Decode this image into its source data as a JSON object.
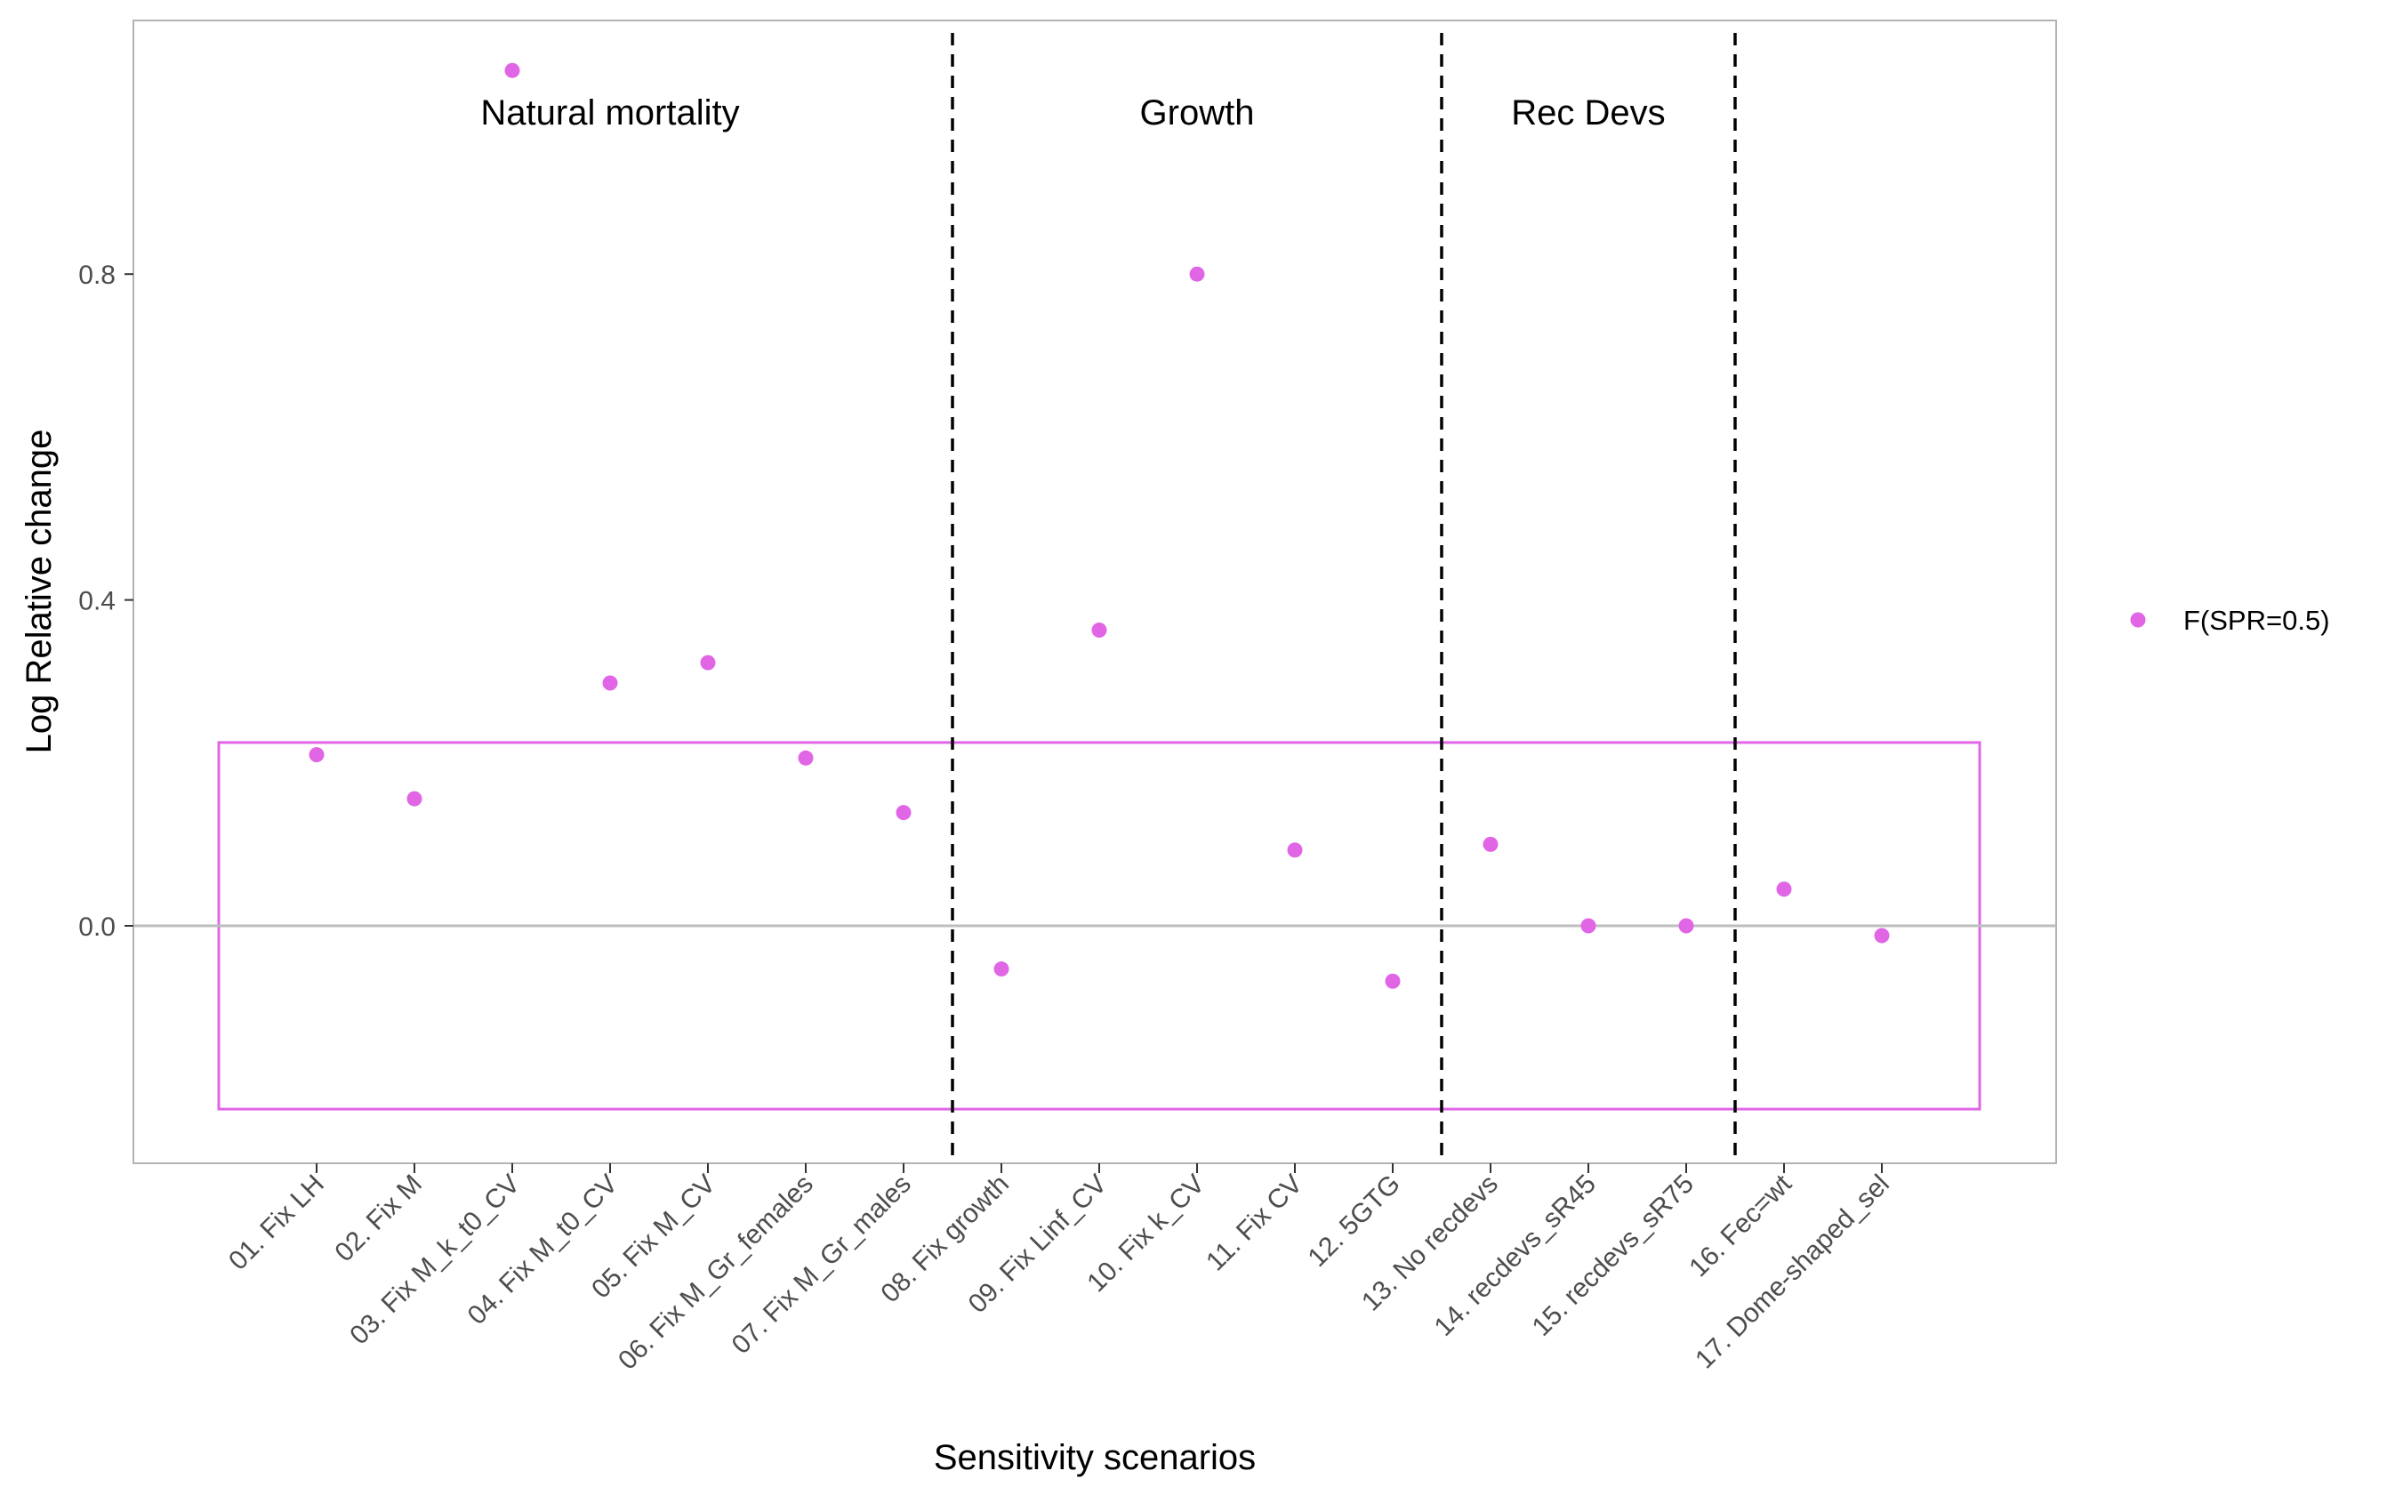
{
  "chart_data": {
    "type": "scatter",
    "xlabel": "Sensitivity scenarios",
    "ylabel": "Log Relative change",
    "ylim": [
      -0.29,
      1.11
    ],
    "yticks": [
      "0.0",
      "0.4",
      "0.8"
    ],
    "grid": false,
    "legend_position": "right",
    "categories": [
      "01. Fix LH",
      "02. Fix M",
      "03. Fix M_k_t0_CV",
      "04. Fix M_t0_CV",
      "05. Fix M_CV",
      "06. Fix M_Gr_females",
      "07. Fix M_Gr_males",
      "08. Fix growth",
      "09. Fix Linf_CV",
      "10. Fix k_CV",
      "11. Fix CV",
      "12. 5GTG",
      "13. No recdevs",
      "14. recdevs_sR45",
      "15. recdevs_sR75",
      "16. Fec=wt",
      "17. Dome-shaped_sel"
    ],
    "series": [
      {
        "name": "F(SPR=0.5)",
        "color": "#e066e6",
        "values": [
          0.21,
          0.156,
          1.05,
          0.298,
          0.323,
          0.206,
          0.139,
          -0.053,
          0.363,
          0.8,
          0.093,
          -0.068,
          0.1,
          0.0,
          0.0,
          0.045,
          -0.012
        ]
      }
    ],
    "reference_line": {
      "y": 0.0,
      "color": "#bebebe"
    },
    "highlight_box": {
      "x_from": 1,
      "x_to": 17,
      "y_from": -0.225,
      "y_to": 0.225,
      "color": "#e066e6"
    },
    "groups": [
      {
        "label": "Natural mortality",
        "from": 1,
        "to": 7
      },
      {
        "label": "Growth",
        "from": 8,
        "to": 12
      },
      {
        "label": "Rec Devs",
        "from": 13,
        "to": 15
      }
    ],
    "dividers_after": [
      7,
      12,
      15
    ]
  }
}
